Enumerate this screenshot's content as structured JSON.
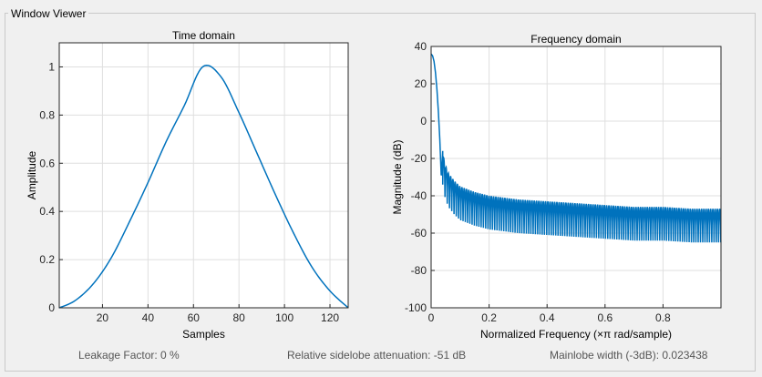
{
  "window": {
    "title": "Window Viewer"
  },
  "status": {
    "leakage": "Leakage Factor: 0 %",
    "sidelobe": "Relative sidelobe attenuation: -51 dB",
    "mainlobe": "Mainlobe width (-3dB): 0.023438"
  },
  "colors": {
    "line": "#0072bd",
    "grid": "#dfdfdf",
    "axis": "#262626",
    "background": "#f0f0f0"
  },
  "chart_data": [
    {
      "type": "line",
      "title": "Time domain",
      "xlabel": "Samples",
      "ylabel": "Amplitude",
      "xlim": [
        1,
        128
      ],
      "ylim": [
        0,
        1.1
      ],
      "xticks": [
        20,
        40,
        60,
        80,
        100,
        120
      ],
      "yticks": [
        0,
        0.2,
        0.4,
        0.6,
        0.8,
        1
      ],
      "xtick_labels": [
        "20",
        "40",
        "60",
        "80",
        "100",
        "120"
      ],
      "ytick_labels": [
        "0",
        "0.2",
        "0.4",
        "0.6",
        "0.8",
        "1"
      ],
      "grid": true,
      "series": [
        {
          "x": [
            1,
            8,
            16,
            24,
            32,
            40,
            48,
            56,
            64,
            72,
            80,
            88,
            96,
            104,
            112,
            120,
            128
          ],
          "y": [
            0.0,
            0.03,
            0.1,
            0.21,
            0.36,
            0.52,
            0.69,
            0.84,
            1.0,
            0.96,
            0.81,
            0.64,
            0.47,
            0.31,
            0.17,
            0.07,
            0.0
          ]
        }
      ]
    },
    {
      "type": "line",
      "title": "Frequency domain",
      "xlabel": "Normalized Frequency  (×π rad/sample)",
      "ylabel": "Magnitude (dB)",
      "xlim": [
        0,
        1
      ],
      "ylim": [
        -100,
        40
      ],
      "xticks": [
        0,
        0.2,
        0.4,
        0.6,
        0.8
      ],
      "yticks": [
        -100,
        -80,
        -60,
        -40,
        -20,
        0,
        20,
        40
      ],
      "xtick_labels": [
        "0",
        "0.2",
        "0.4",
        "0.6",
        "0.8"
      ],
      "ytick_labels": [
        "-100",
        "-80",
        "-60",
        "-40",
        "-20",
        "0",
        "20",
        "40"
      ],
      "grid": true,
      "series": [
        {
          "x": [
            0,
            0.005,
            0.01,
            0.015,
            0.02,
            0.025,
            0.03,
            0.035,
            0.04,
            0.045,
            0.05,
            0.06,
            0.08,
            0.1,
            0.15,
            0.2,
            0.3,
            0.4,
            0.5,
            0.6,
            0.7,
            0.8,
            0.9,
            1.0
          ],
          "y": [
            36.0,
            35.0,
            32.0,
            26.0,
            17.0,
            5.0,
            -10.0,
            -30.0,
            -16.0,
            -21.0,
            -24.0,
            -28.0,
            -32.0,
            -35.0,
            -38.0,
            -40.0,
            -42.0,
            -43.0,
            -44.0,
            -45.0,
            -46.0,
            -46.0,
            -47.0,
            -47.0
          ]
        }
      ]
    }
  ]
}
